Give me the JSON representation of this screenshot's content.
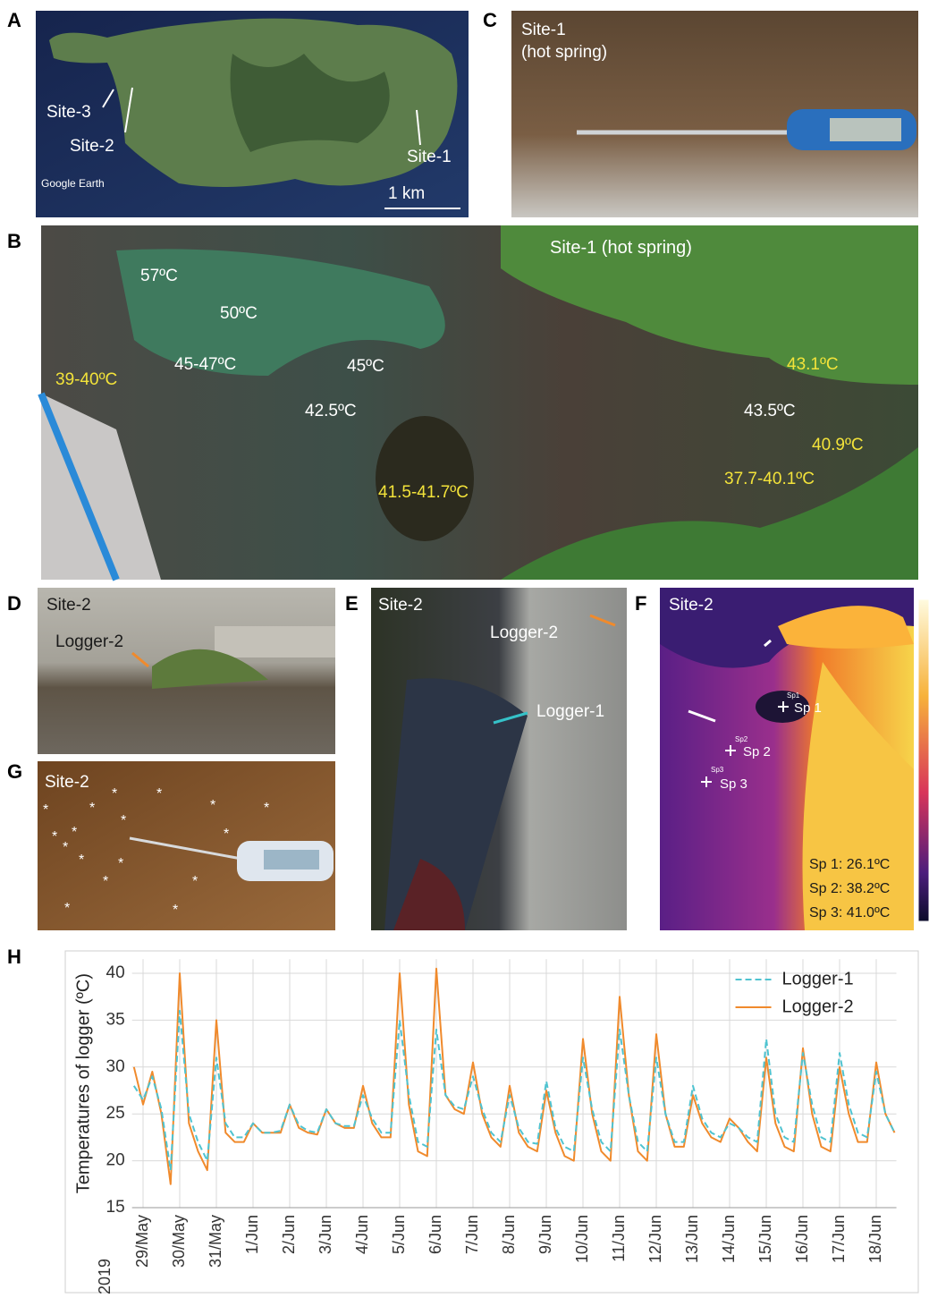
{
  "panels": [
    {
      "label": "A",
      "texts": [
        "Site-3",
        "Site-2",
        "Site-1",
        "Google Earth",
        "1 km"
      ]
    },
    {
      "label": "B",
      "texts": [
        "Site-1 (hot spring)",
        "57ºC",
        "50ºC",
        "45-47ºC",
        "45ºC",
        "42.5ºC",
        "39-40ºC",
        "43.1ºC",
        "43.5ºC",
        "40.9ºC",
        "37.7-40.1ºC",
        "41.5-41.7ºC"
      ]
    },
    {
      "label": "C",
      "texts": [
        "Site-1",
        "(hot spring)"
      ]
    },
    {
      "label": "D",
      "texts": [
        "Site-2",
        "Logger-2"
      ]
    },
    {
      "label": "E",
      "texts": [
        "Site-2",
        "Logger-2",
        "Logger-1"
      ]
    },
    {
      "label": "F",
      "texts": [
        "Site-2",
        "Sp1",
        "Sp 1",
        "Sp2",
        "Sp 2",
        "Sp3",
        "Sp 3",
        "Sp 1: 26.1ºC",
        "Sp 2: 38.2ºC",
        "Sp 3: 41.0ºC"
      ]
    },
    {
      "label": "G",
      "texts": [
        "Site-2"
      ]
    },
    {
      "label": "H",
      "texts": []
    }
  ],
  "chart_data": {
    "type": "line",
    "ylabel": "Temperatures of logger (ºC)",
    "xlabel": "2019",
    "x": [
      -0.25,
      0,
      0.25,
      0.5,
      0.75,
      1,
      1.25,
      1.5,
      1.75,
      2,
      2.25,
      2.5,
      2.75,
      3,
      3.25,
      3.5,
      3.75,
      4,
      4.25,
      4.5,
      4.75,
      5,
      5.25,
      5.5,
      5.75,
      6,
      6.25,
      6.5,
      6.75,
      7,
      7.25,
      7.5,
      7.75,
      8,
      8.25,
      8.5,
      8.75,
      9,
      9.25,
      9.5,
      9.75,
      10,
      10.25,
      10.5,
      10.75,
      11,
      11.25,
      11.5,
      11.75,
      12,
      12.25,
      12.5,
      12.75,
      13,
      13.25,
      13.5,
      13.75,
      14,
      14.25,
      14.5,
      14.75,
      15,
      15.25,
      15.5,
      15.75,
      16,
      16.25,
      16.5,
      16.75,
      17,
      17.25,
      17.5,
      17.75,
      18,
      18.25,
      18.5,
      18.75,
      19,
      19.25,
      19.5,
      19.75,
      20,
      20.25,
      20.5
    ],
    "series": [
      {
        "name": "Logger-1",
        "color": "#4fc3d0",
        "dashed": true,
        "values": [
          28,
          26.5,
          29,
          25.5,
          19,
          36,
          25,
          22,
          20,
          31,
          24,
          22.5,
          22.5,
          24,
          23,
          23,
          23.2,
          26,
          23.8,
          23.2,
          23,
          25.5,
          24,
          23.7,
          23.7,
          27,
          24.5,
          23,
          23,
          35,
          27,
          22,
          21.5,
          34,
          27,
          25.8,
          25.5,
          29,
          25.5,
          23,
          22,
          27,
          23.5,
          22,
          21.8,
          28.5,
          23.5,
          21.5,
          21,
          31,
          25.5,
          22,
          21,
          34,
          27,
          22,
          21,
          31,
          25,
          22,
          22,
          28,
          24.5,
          23,
          22.5,
          24,
          23.5,
          22.5,
          22,
          33,
          25,
          22.5,
          22,
          31.5,
          26,
          22.5,
          22,
          31.5,
          26,
          23,
          22.5,
          29.5,
          25,
          23
        ]
      },
      {
        "name": "Logger-2",
        "color": "#f08a2c",
        "dashed": false,
        "values": [
          30,
          26,
          29.5,
          25,
          17.5,
          40,
          24,
          21,
          19,
          35,
          23,
          22,
          22,
          24,
          23,
          23,
          23,
          26,
          23.5,
          23,
          22.8,
          25.5,
          24,
          23.5,
          23.5,
          28,
          24,
          22.5,
          22.5,
          40,
          26,
          21,
          20.5,
          40.5,
          27,
          25.5,
          25,
          30.5,
          25,
          22.5,
          21.5,
          28,
          23,
          21.5,
          21,
          27.5,
          23,
          20.5,
          20,
          33,
          25,
          21,
          20,
          37.5,
          27,
          21,
          20,
          33.5,
          25,
          21.5,
          21.5,
          27,
          24,
          22.5,
          22,
          24.5,
          23.5,
          22,
          21,
          31,
          24,
          21.5,
          21,
          32,
          25,
          21.5,
          21,
          30,
          25,
          22,
          22,
          30.5,
          25,
          23
        ]
      }
    ],
    "xlim": [
      -0.3,
      20.55
    ],
    "ylim": [
      15,
      41.5
    ],
    "xticks": [
      {
        "value": 0,
        "label": "29/May"
      },
      {
        "value": 1,
        "label": "30/May"
      },
      {
        "value": 2,
        "label": "31/May"
      },
      {
        "value": 3,
        "label": "1/Jun"
      },
      {
        "value": 4,
        "label": "2/Jun"
      },
      {
        "value": 5,
        "label": "3/Jun"
      },
      {
        "value": 6,
        "label": "4/Jun"
      },
      {
        "value": 7,
        "label": "5/Jun"
      },
      {
        "value": 8,
        "label": "6/Jun"
      },
      {
        "value": 9,
        "label": "7/Jun"
      },
      {
        "value": 10,
        "label": "8/Jun"
      },
      {
        "value": 11,
        "label": "9/Jun"
      },
      {
        "value": 12,
        "label": "10/Jun"
      },
      {
        "value": 13,
        "label": "11/Jun"
      },
      {
        "value": 14,
        "label": "12/Jun"
      },
      {
        "value": 15,
        "label": "13/Jun"
      },
      {
        "value": 16,
        "label": "14/Jun"
      },
      {
        "value": 17,
        "label": "15/Jun"
      },
      {
        "value": 18,
        "label": "16/Jun"
      },
      {
        "value": 19,
        "label": "17/Jun"
      },
      {
        "value": 20,
        "label": "18/Jun"
      }
    ],
    "yticks": [
      15,
      20,
      25,
      30,
      35,
      40
    ],
    "grid": true,
    "legend": "top-right"
  }
}
